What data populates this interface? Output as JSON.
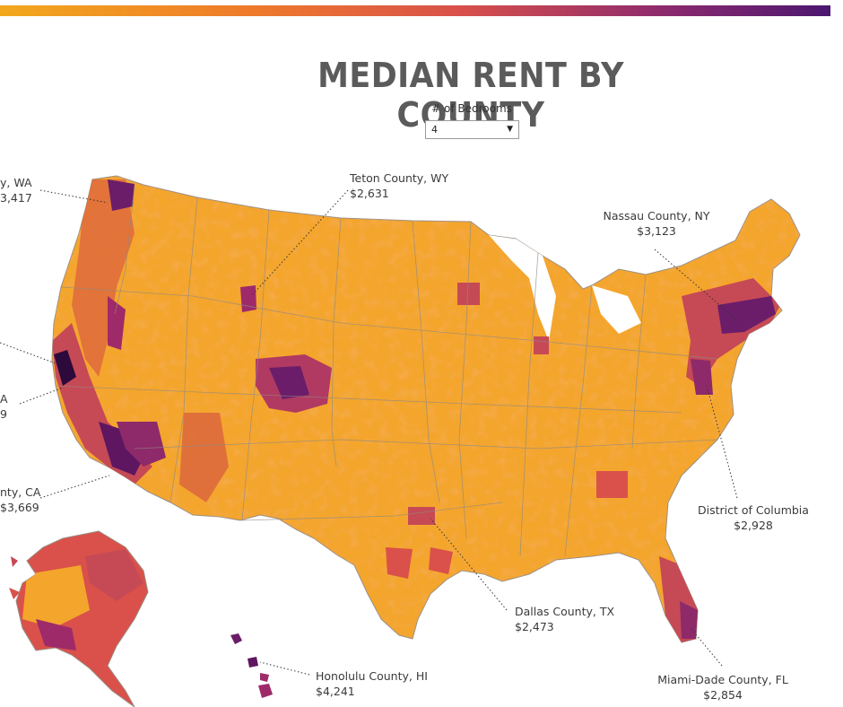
{
  "title": "MEDIAN RENT BY COUNTY",
  "filter": {
    "label": "# of Bedrooms",
    "selected": "4"
  },
  "legend_colors": {
    "low": "#f7b733",
    "mid": "#ee8a2c",
    "high": "#d9514a",
    "very_high": "#9e2a6a",
    "max": "#4a0d5c"
  },
  "callouts": {
    "king_wa": {
      "name": "y, WA",
      "value": "3,417"
    },
    "teton": {
      "name": "Teton County, WY",
      "value": "$2,631"
    },
    "nassau": {
      "name": "Nassau County, NY",
      "value": "$3,123"
    },
    "ca_upper": {
      "name": "A",
      "value": "9"
    },
    "la_ca": {
      "name": "nty, CA",
      "value": "$3,669"
    },
    "dc": {
      "name": "District of Columbia",
      "value": "$2,928"
    },
    "dallas": {
      "name": "Dallas County, TX",
      "value": "$2,473"
    },
    "honolulu": {
      "name": "Honolulu County, HI",
      "value": "$4,241"
    },
    "miami": {
      "name": "Miami-Dade County, FL",
      "value": "$2,854"
    }
  }
}
